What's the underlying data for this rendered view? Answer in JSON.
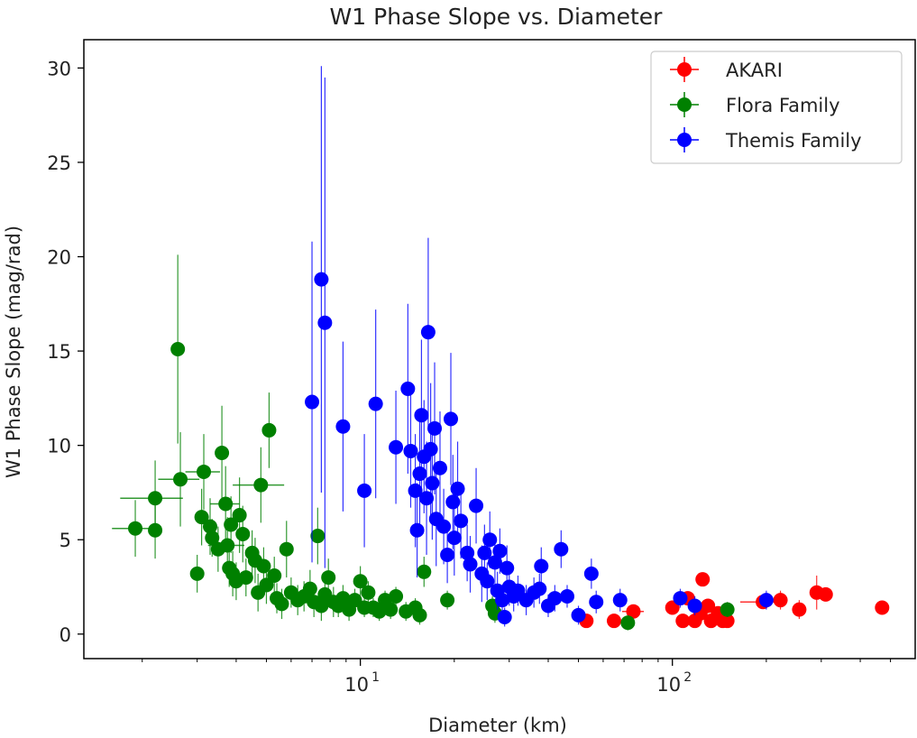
{
  "chart_data": {
    "type": "scatter",
    "title": "W1 Phase Slope vs. Diameter",
    "xlabel": "Diameter (km)",
    "ylabel": "W1 Phase Slope (mag/rad)",
    "xscale": "log",
    "xlim": [
      1.3,
      600
    ],
    "ylim": [
      -1.3,
      31.5
    ],
    "xticks": [
      {
        "label_base": "10",
        "label_exp": "1",
        "value": 10
      },
      {
        "label_base": "10",
        "label_exp": "2",
        "value": 100
      }
    ],
    "yticks": [
      0,
      5,
      10,
      15,
      20,
      25,
      30
    ],
    "legend": {
      "position": "top-right"
    },
    "series": [
      {
        "name": "AKARI",
        "color": "#ff0000",
        "points": [
          {
            "x": 53,
            "y": 0.7
          },
          {
            "x": 65,
            "y": 0.7
          },
          {
            "x": 75,
            "y": 1.2,
            "xerr": 6
          },
          {
            "x": 100,
            "y": 1.4
          },
          {
            "x": 108,
            "y": 0.7
          },
          {
            "x": 112,
            "y": 1.9
          },
          {
            "x": 118,
            "y": 0.7
          },
          {
            "x": 123,
            "y": 1.1
          },
          {
            "x": 125,
            "y": 2.9
          },
          {
            "x": 130,
            "y": 1.5
          },
          {
            "x": 133,
            "y": 0.7
          },
          {
            "x": 140,
            "y": 1.1
          },
          {
            "x": 145,
            "y": 0.7,
            "xerr": 12
          },
          {
            "x": 150,
            "y": 0.7
          },
          {
            "x": 195,
            "y": 1.7,
            "xerr": 30
          },
          {
            "x": 222,
            "y": 1.8,
            "yerr": 0.5
          },
          {
            "x": 255,
            "y": 1.3,
            "yerr": 0.5
          },
          {
            "x": 290,
            "y": 2.2,
            "yerr": 0.9
          },
          {
            "x": 310,
            "y": 2.1
          },
          {
            "x": 470,
            "y": 1.4
          }
        ]
      },
      {
        "name": "Flora Family",
        "color": "#008000",
        "points": [
          {
            "x": 1.9,
            "y": 5.6,
            "xerr": 0.3,
            "yerr": 1.5
          },
          {
            "x": 2.2,
            "y": 7.2,
            "xerr": 0.5,
            "yerr": 2.0
          },
          {
            "x": 2.2,
            "y": 5.5,
            "yerr": 1.5
          },
          {
            "x": 2.6,
            "y": 15.1,
            "yerr": 5.0
          },
          {
            "x": 2.65,
            "y": 8.2,
            "xerr": 0.4,
            "yerr": 2.5
          },
          {
            "x": 3.0,
            "y": 3.2,
            "yerr": 1.0
          },
          {
            "x": 3.1,
            "y": 6.2,
            "yerr": 1.5
          },
          {
            "x": 3.15,
            "y": 8.6,
            "xerr": 0.4,
            "yerr": 2.0
          },
          {
            "x": 3.3,
            "y": 5.7,
            "yerr": 1.5
          },
          {
            "x": 3.35,
            "y": 5.1,
            "yerr": 1.0
          },
          {
            "x": 3.5,
            "y": 4.5,
            "yerr": 1.2
          },
          {
            "x": 3.6,
            "y": 9.6,
            "yerr": 2.5
          },
          {
            "x": 3.7,
            "y": 6.9,
            "xerr": 0.4,
            "yerr": 2.0
          },
          {
            "x": 3.75,
            "y": 4.7,
            "xerr": 0.5,
            "yerr": 1.5
          },
          {
            "x": 3.8,
            "y": 3.5,
            "yerr": 1.0
          },
          {
            "x": 3.85,
            "y": 5.8,
            "yerr": 1.5
          },
          {
            "x": 3.9,
            "y": 3.2,
            "yerr": 1.2
          },
          {
            "x": 4.0,
            "y": 2.8,
            "yerr": 1.0
          },
          {
            "x": 4.1,
            "y": 6.3,
            "yerr": 2.0
          },
          {
            "x": 4.2,
            "y": 5.3,
            "yerr": 1.5
          },
          {
            "x": 4.3,
            "y": 3.0,
            "yerr": 1.0
          },
          {
            "x": 4.5,
            "y": 4.3,
            "yerr": 1.2
          },
          {
            "x": 4.6,
            "y": 3.9,
            "yerr": 1.2
          },
          {
            "x": 4.7,
            "y": 2.2,
            "yerr": 1.0
          },
          {
            "x": 4.8,
            "y": 7.9,
            "xerr": 0.9,
            "yerr": 2.0
          },
          {
            "x": 4.9,
            "y": 3.6,
            "yerr": 1.0
          },
          {
            "x": 5.0,
            "y": 2.6,
            "yerr": 1.0
          },
          {
            "x": 5.1,
            "y": 10.8,
            "yerr": 2.0
          },
          {
            "x": 5.3,
            "y": 3.1,
            "yerr": 1.0
          },
          {
            "x": 5.4,
            "y": 1.9,
            "yerr": 0.8
          },
          {
            "x": 5.6,
            "y": 1.6,
            "yerr": 0.8
          },
          {
            "x": 5.8,
            "y": 4.5,
            "yerr": 1.5
          },
          {
            "x": 6.0,
            "y": 2.2,
            "yerr": 0.8
          },
          {
            "x": 6.3,
            "y": 1.8,
            "yerr": 0.8
          },
          {
            "x": 6.6,
            "y": 2.0,
            "yerr": 0.8
          },
          {
            "x": 6.9,
            "y": 2.4,
            "yerr": 1.0
          },
          {
            "x": 7.1,
            "y": 1.7,
            "yerr": 0.8
          },
          {
            "x": 7.3,
            "y": 5.2,
            "yerr": 1.5
          },
          {
            "x": 7.5,
            "y": 1.5,
            "yerr": 0.8
          },
          {
            "x": 7.7,
            "y": 2.1,
            "yerr": 0.8
          },
          {
            "x": 7.9,
            "y": 3.0,
            "yerr": 1.0
          },
          {
            "x": 8.2,
            "y": 1.7,
            "yerr": 0.8
          },
          {
            "x": 8.5,
            "y": 1.5,
            "yerr": 0.6
          },
          {
            "x": 8.8,
            "y": 1.9,
            "yerr": 0.7
          },
          {
            "x": 9.2,
            "y": 1.3,
            "yerr": 0.6
          },
          {
            "x": 9.6,
            "y": 1.8,
            "yerr": 0.6
          },
          {
            "x": 10.0,
            "y": 2.8,
            "yerr": 0.8
          },
          {
            "x": 10.3,
            "y": 1.4,
            "yerr": 0.5
          },
          {
            "x": 10.6,
            "y": 2.2,
            "yerr": 0.6
          },
          {
            "x": 11.0,
            "y": 1.4,
            "yerr": 0.5
          },
          {
            "x": 11.5,
            "y": 1.2,
            "yerr": 0.5
          },
          {
            "x": 12.0,
            "y": 1.8,
            "yerr": 0.5
          },
          {
            "x": 12.5,
            "y": 1.3,
            "yerr": 0.5
          },
          {
            "x": 13.0,
            "y": 2.0,
            "yerr": 0.5
          },
          {
            "x": 14.0,
            "y": 1.2,
            "yerr": 0.5
          },
          {
            "x": 15.0,
            "y": 1.4,
            "yerr": 0.5
          },
          {
            "x": 15.5,
            "y": 1.0,
            "yerr": 0.5
          },
          {
            "x": 16.0,
            "y": 3.3,
            "yerr": 0.8
          },
          {
            "x": 19.0,
            "y": 1.8,
            "yerr": 0.5
          },
          {
            "x": 26.5,
            "y": 1.5,
            "yerr": 0.5
          },
          {
            "x": 27.0,
            "y": 1.1,
            "yerr": 0.5
          },
          {
            "x": 72,
            "y": 0.6,
            "yerr": 0.4
          },
          {
            "x": 150,
            "y": 1.3,
            "yerr": 0.4
          }
        ]
      },
      {
        "name": "Themis Family",
        "color": "#0000ff",
        "points": [
          {
            "x": 7.0,
            "y": 12.3,
            "yerr": 8.5
          },
          {
            "x": 7.5,
            "y": 18.8,
            "yerr": 11.3
          },
          {
            "x": 7.7,
            "y": 16.5,
            "yerr": 13.0
          },
          {
            "x": 8.8,
            "y": 11.0,
            "yerr": 4.5
          },
          {
            "x": 10.3,
            "y": 7.6,
            "yerr": 3.0
          },
          {
            "x": 11.2,
            "y": 12.2,
            "yerr": 5.0
          },
          {
            "x": 13.0,
            "y": 9.9,
            "yerr": 3.0
          },
          {
            "x": 14.2,
            "y": 13.0,
            "yerr": 4.5
          },
          {
            "x": 14.5,
            "y": 9.7,
            "yerr": 3.0
          },
          {
            "x": 15.0,
            "y": 7.6,
            "yerr": 3.0
          },
          {
            "x": 15.2,
            "y": 5.5,
            "yerr": 2.5
          },
          {
            "x": 15.5,
            "y": 8.5,
            "yerr": 3.0
          },
          {
            "x": 15.7,
            "y": 11.6,
            "yerr": 4.0
          },
          {
            "x": 16.0,
            "y": 9.4,
            "yerr": 3.0
          },
          {
            "x": 16.3,
            "y": 7.2,
            "yerr": 3.0
          },
          {
            "x": 16.5,
            "y": 16.0,
            "yerr": 5.0
          },
          {
            "x": 16.8,
            "y": 9.8,
            "yerr": 3.5
          },
          {
            "x": 17.0,
            "y": 8.0,
            "yerr": 3.0
          },
          {
            "x": 17.3,
            "y": 10.9,
            "yerr": 3.5
          },
          {
            "x": 17.5,
            "y": 6.1,
            "yerr": 2.5
          },
          {
            "x": 18.0,
            "y": 8.8,
            "yerr": 3.0
          },
          {
            "x": 18.5,
            "y": 5.7,
            "yerr": 2.0
          },
          {
            "x": 19.0,
            "y": 4.2,
            "yerr": 1.5
          },
          {
            "x": 19.5,
            "y": 11.4,
            "yerr": 3.5
          },
          {
            "x": 19.8,
            "y": 7.0,
            "yerr": 2.5
          },
          {
            "x": 20.0,
            "y": 5.1,
            "yerr": 2.0
          },
          {
            "x": 20.5,
            "y": 7.7,
            "yerr": 2.5
          },
          {
            "x": 21.0,
            "y": 6.0,
            "yerr": 2.0
          },
          {
            "x": 22.0,
            "y": 4.3,
            "yerr": 1.5
          },
          {
            "x": 22.5,
            "y": 3.7,
            "yerr": 1.5
          },
          {
            "x": 23.5,
            "y": 6.8,
            "yerr": 2.0
          },
          {
            "x": 24.5,
            "y": 3.2,
            "yerr": 1.5
          },
          {
            "x": 25.0,
            "y": 4.3,
            "yerr": 1.5
          },
          {
            "x": 25.5,
            "y": 2.8,
            "yerr": 1.0
          },
          {
            "x": 26.0,
            "y": 5.0,
            "yerr": 1.5
          },
          {
            "x": 27.0,
            "y": 3.8,
            "yerr": 1.2
          },
          {
            "x": 27.5,
            "y": 2.3,
            "yerr": 1.0
          },
          {
            "x": 28.0,
            "y": 4.4,
            "yerr": 1.2
          },
          {
            "x": 28.5,
            "y": 1.8,
            "yerr": 0.8
          },
          {
            "x": 29.0,
            "y": 0.9,
            "yerr": 0.5
          },
          {
            "x": 29.5,
            "y": 3.5,
            "yerr": 1.2
          },
          {
            "x": 30.0,
            "y": 2.5,
            "yerr": 1.0
          },
          {
            "x": 31.0,
            "y": 2.0,
            "yerr": 0.8
          },
          {
            "x": 32.0,
            "y": 2.3,
            "yerr": 0.8
          },
          {
            "x": 34.0,
            "y": 1.8,
            "yerr": 0.8
          },
          {
            "x": 36.0,
            "y": 2.2,
            "yerr": 0.8
          },
          {
            "x": 37.5,
            "y": 2.4,
            "yerr": 0.8
          },
          {
            "x": 38.0,
            "y": 3.6,
            "yerr": 1.0
          },
          {
            "x": 40.0,
            "y": 1.5,
            "yerr": 0.6
          },
          {
            "x": 42.0,
            "y": 1.9,
            "yerr": 0.7
          },
          {
            "x": 44.0,
            "y": 4.5,
            "yerr": 1.0
          },
          {
            "x": 46.0,
            "y": 2.0,
            "yerr": 0.6
          },
          {
            "x": 50.0,
            "y": 1.0,
            "yerr": 0.5
          },
          {
            "x": 55.0,
            "y": 3.2,
            "yerr": 0.8
          },
          {
            "x": 57.0,
            "y": 1.7,
            "yerr": 0.6
          },
          {
            "x": 68.0,
            "y": 1.8,
            "yerr": 0.6
          },
          {
            "x": 106,
            "y": 1.9,
            "yerr": 0.5
          },
          {
            "x": 118,
            "y": 1.5,
            "yerr": 0.5
          },
          {
            "x": 200,
            "y": 1.8,
            "yerr": 0.5
          }
        ]
      }
    ]
  }
}
